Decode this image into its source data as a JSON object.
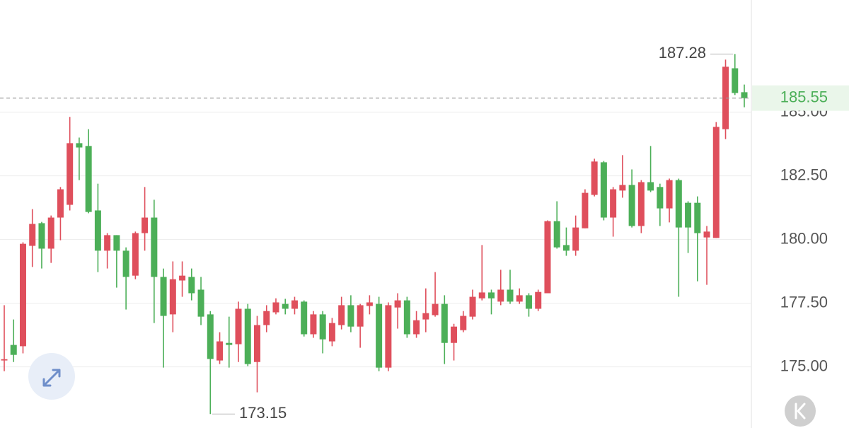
{
  "chart_data": {
    "type": "candlestick",
    "open": [
      175.25,
      175.86,
      175.81,
      179.75,
      180.64,
      179.64,
      180.86,
      181.36,
      183.78,
      183.67,
      181.14,
      179.56,
      180.17,
      179.56,
      178.58,
      180.25,
      180.86,
      178.53,
      177.06,
      178.39,
      178.53,
      178.03,
      177.06,
      175.25,
      175.94,
      175.89,
      177.28,
      175.19,
      176.64,
      177.14,
      177.47,
      177.28,
      177.56,
      176.28,
      177.06,
      176.0,
      176.64,
      177.42,
      176.58,
      177.39,
      177.47,
      174.97,
      177.33,
      177.61,
      176.28,
      176.86,
      177.03,
      177.47,
      175.94,
      176.44,
      176.97,
      177.69,
      177.92,
      177.56,
      178.03,
      177.56,
      177.81,
      177.28,
      177.89,
      180.72,
      179.78,
      179.56,
      180.44,
      181.75,
      183.03,
      180.86,
      181.92,
      182.14,
      180.53,
      182.25,
      182.06,
      181.22,
      182.33,
      181.44,
      181.44,
      180.08,
      180.06,
      184.33,
      186.72,
      185.78
    ],
    "high": [
      177.42,
      176.86,
      179.89,
      181.19,
      180.69,
      180.94,
      182.06,
      184.81,
      184.0,
      184.33,
      182.19,
      180.25,
      180.17,
      179.69,
      180.31,
      182.06,
      181.56,
      178.86,
      179.14,
      179.14,
      178.86,
      178.53,
      177.19,
      176.36,
      176.97,
      177.56,
      177.47,
      177.0,
      177.42,
      177.69,
      177.67,
      177.75,
      177.61,
      177.19,
      177.19,
      176.92,
      177.75,
      177.81,
      177.47,
      177.81,
      177.75,
      177.53,
      177.89,
      177.75,
      177.19,
      178.08,
      178.72,
      177.81,
      176.69,
      177.19,
      178.03,
      179.78,
      178.03,
      178.81,
      178.81,
      178.08,
      177.89,
      178.03,
      180.75,
      181.5,
      180.47,
      180.94,
      181.97,
      183.17,
      183.08,
      182.06,
      183.31,
      182.75,
      182.33,
      183.67,
      182.19,
      182.39,
      182.39,
      181.5,
      181.69,
      180.53,
      184.61,
      187.06,
      187.28,
      186.08
    ],
    "low": [
      174.83,
      175.19,
      175.53,
      178.92,
      178.86,
      179.08,
      179.97,
      181.14,
      182.33,
      181.03,
      178.72,
      178.86,
      178.11,
      177.25,
      178.44,
      179.56,
      176.72,
      174.97,
      176.36,
      177.75,
      177.61,
      176.64,
      173.15,
      175.11,
      174.97,
      175.19,
      175.03,
      174.0,
      176.36,
      177.06,
      177.06,
      177.06,
      176.19,
      176.14,
      175.53,
      175.81,
      176.47,
      176.36,
      175.75,
      177.06,
      174.83,
      174.83,
      176.5,
      176.14,
      176.14,
      176.36,
      176.97,
      175.11,
      175.25,
      176.36,
      176.86,
      177.61,
      177.06,
      177.42,
      177.47,
      177.47,
      176.97,
      177.19,
      177.89,
      179.64,
      179.36,
      179.36,
      180.44,
      181.69,
      180.75,
      180.11,
      181.64,
      180.47,
      180.25,
      181.86,
      180.53,
      180.67,
      177.75,
      179.47,
      178.36,
      178.22,
      180.06,
      183.94,
      185.67,
      185.19
    ],
    "close": [
      175.3,
      175.47,
      179.83,
      180.61,
      179.64,
      180.86,
      181.97,
      183.78,
      183.61,
      181.08,
      179.56,
      180.17,
      179.56,
      178.53,
      180.25,
      180.86,
      178.53,
      177.0,
      178.44,
      178.58,
      177.89,
      176.97,
      175.31,
      176.0,
      175.86,
      177.28,
      175.11,
      176.64,
      177.19,
      177.53,
      177.28,
      177.61,
      176.28,
      177.06,
      176.08,
      176.72,
      177.42,
      176.58,
      177.42,
      177.53,
      174.97,
      177.42,
      177.61,
      176.28,
      176.83,
      177.11,
      177.47,
      175.94,
      176.58,
      177.0,
      177.75,
      177.92,
      177.69,
      178.03,
      177.56,
      177.81,
      177.28,
      177.94,
      180.72,
      179.69,
      179.56,
      180.47,
      181.83,
      183.06,
      180.86,
      181.97,
      182.14,
      180.53,
      182.25,
      181.92,
      181.22,
      182.33,
      180.47,
      180.47,
      180.25,
      180.31,
      184.42,
      186.78,
      185.75,
      185.55
    ],
    "up_color": "#df4f5c",
    "down_color": "#4caf58",
    "ylim": [
      172.6,
      189.4
    ],
    "yticks": [
      {
        "value": 175,
        "label": "175.00"
      },
      {
        "value": 177.5,
        "label": "177.50"
      },
      {
        "value": 180,
        "label": "180.00"
      },
      {
        "value": 182.5,
        "label": "182.50"
      },
      {
        "value": 185,
        "label": "185.00"
      }
    ],
    "grid": true,
    "last_price": 185.55,
    "max_label": 187.28,
    "min_label": 173.15
  }
}
